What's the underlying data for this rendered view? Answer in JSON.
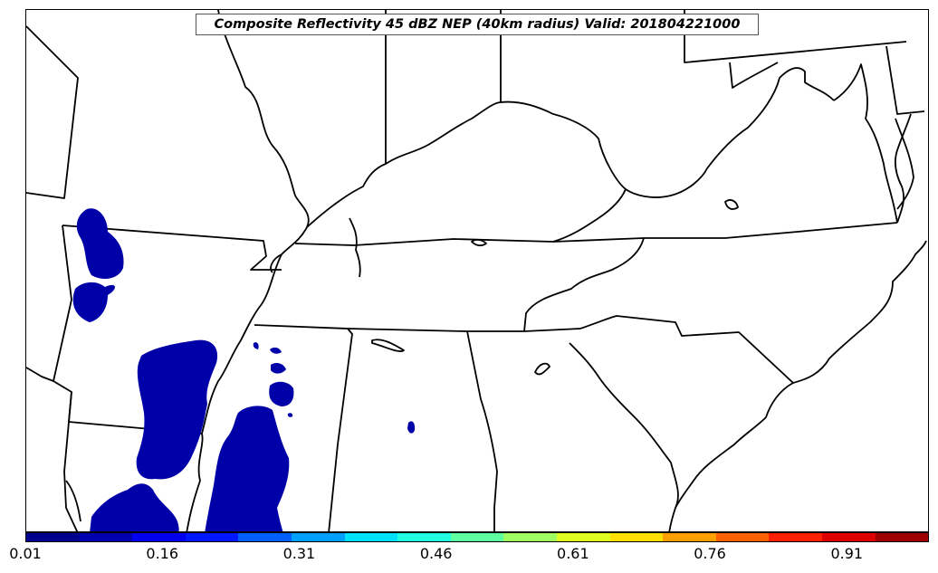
{
  "map": {
    "title": "Composite Reflectivity 45 dBZ NEP (40km radius) Valid: 201804221000",
    "region": "Southeastern United States",
    "boundary_color": "#000000",
    "precip_fill_color": "#0000a8"
  },
  "colorbar": {
    "colors": [
      "#00008f",
      "#0000b0",
      "#0000ef",
      "#0018ff",
      "#0060ff",
      "#00a0ff",
      "#00e0ff",
      "#20ffdf",
      "#5fffa0",
      "#9fff60",
      "#dfff20",
      "#ffe000",
      "#ffa000",
      "#ff6000",
      "#ff2000",
      "#df0000",
      "#9f0000"
    ],
    "min": 0.01,
    "max": 1.0,
    "tick_labels": [
      "0.01",
      "0.16",
      "0.31",
      "0.46",
      "0.61",
      "0.76",
      "0.91"
    ],
    "tick_values": [
      0.01,
      0.16,
      0.31,
      0.46,
      0.61,
      0.76,
      0.91
    ]
  }
}
